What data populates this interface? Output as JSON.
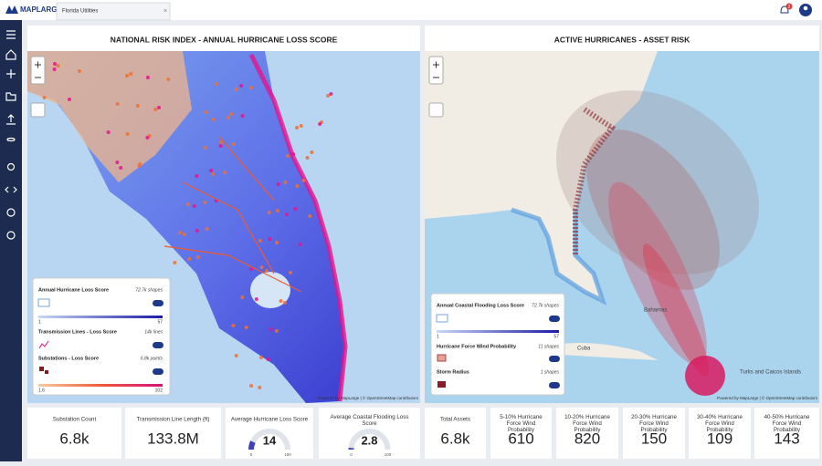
{
  "app": {
    "logo": "MAPLARGE",
    "tab": "Florida Utilities",
    "notifications": "2"
  },
  "panels": [
    {
      "title": "NATIONAL RISK INDEX - ANNUAL HURRICANE LOSS SCORE",
      "legend": [
        {
          "name": "Annual Hurricane Loss Score",
          "count": "72.7k shapes",
          "range": [
            1,
            57
          ]
        },
        {
          "name": "Transmission Lines - Loss Score",
          "count": "14k lines"
        },
        {
          "name": "Substations - Loss Score",
          "count": "6.8k points",
          "range": [
            1.6,
            102
          ]
        }
      ],
      "attribution": "Powered by MapLarge | © OpenStreetMap contributors"
    },
    {
      "title": "ACTIVE HURRICANES - ASSET RISK",
      "legend": [
        {
          "name": "Annual Coastal Flooding Loss Score",
          "count": "72.7k shapes",
          "range": [
            1,
            57
          ]
        },
        {
          "name": "Hurricane Force Wind Probability",
          "count": "11 shapes"
        },
        {
          "name": "Storm Radius",
          "count": "1 shapes"
        }
      ],
      "places": [
        "Bahamas",
        "Cuba",
        "Turks and Caicos Islands"
      ],
      "attribution": "Powered by MapLarge | © OpenStreetMap contributors"
    }
  ],
  "cards": [
    {
      "title": "Substation Count",
      "value": "6.8k"
    },
    {
      "title": "Transmission Line Length (ft)",
      "value": "133.8M"
    },
    {
      "title": "Average Hurricane Loss Score",
      "value": 14,
      "min": 0,
      "max": 100
    },
    {
      "title": "Average Coastal Flooding Loss Score",
      "value": 2.8,
      "min": 0,
      "max": 100
    },
    {
      "title": "Total Assets",
      "value": "6.8k"
    },
    {
      "title": "5-10% Hurricane Force Wind Probability",
      "value": "610"
    },
    {
      "title": "10-20% Hurricane Force Wind Probability",
      "value": "820"
    },
    {
      "title": "20-30% Hurricane Force Wind Probability",
      "value": "150"
    },
    {
      "title": "30-40% Hurricane Force Wind Probability",
      "value": "109"
    },
    {
      "title": "40-50% Hurricane Force Wind Probability",
      "value": "143"
    }
  ]
}
